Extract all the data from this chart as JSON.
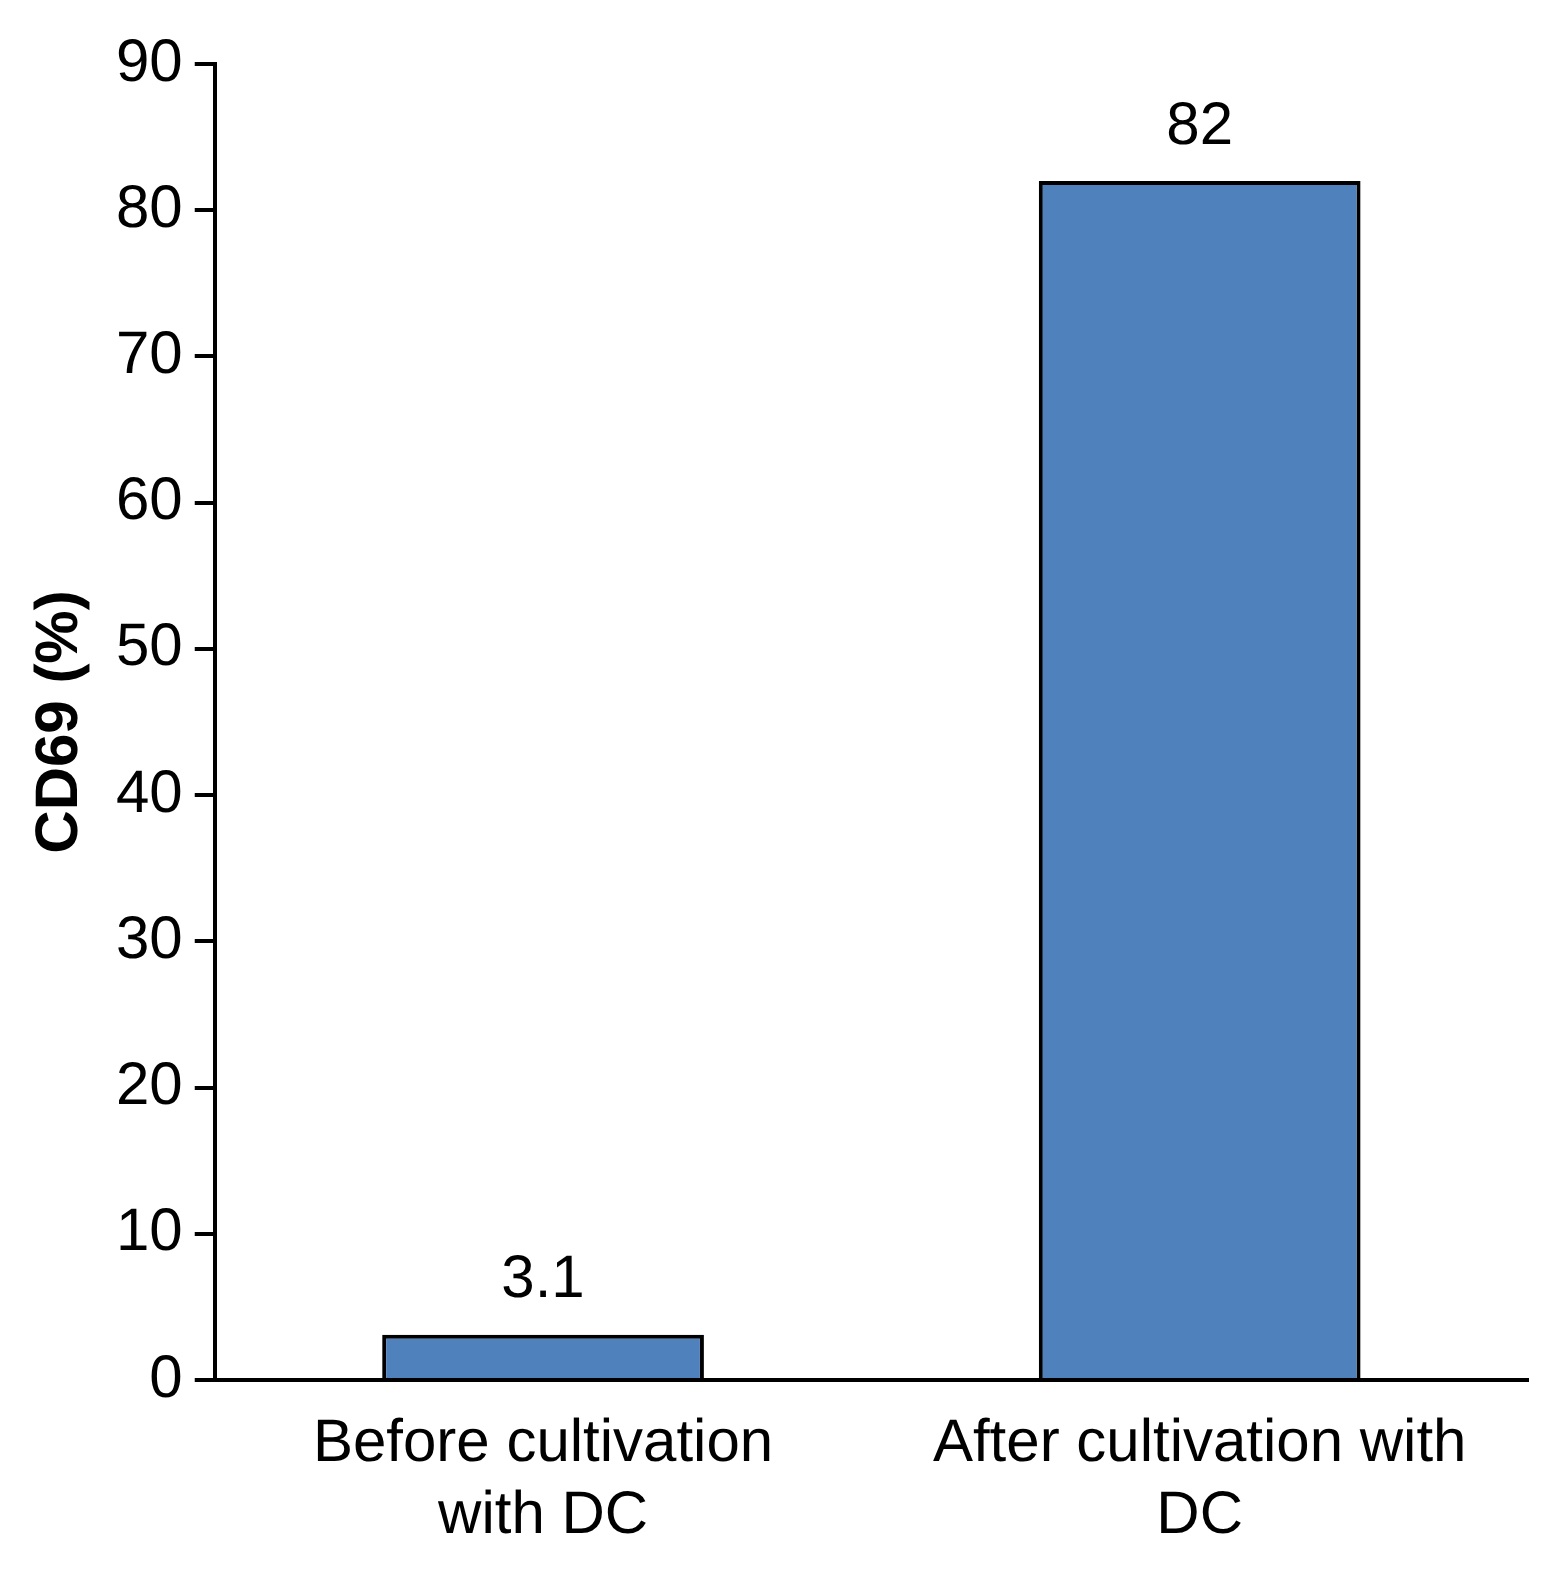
{
  "chart_data": {
    "type": "bar",
    "ylabel": "CD69 (%)",
    "categories": [
      "Before cultivation with DC",
      "After cultivation with DC"
    ],
    "values": [
      3.1,
      82
    ],
    "color": "#4f81bd",
    "ylim": [
      0,
      90
    ],
    "yticks": [
      0,
      10,
      20,
      30,
      40,
      50,
      60,
      70,
      80,
      90
    ],
    "grid": false,
    "legend": false,
    "data_labels": true
  }
}
